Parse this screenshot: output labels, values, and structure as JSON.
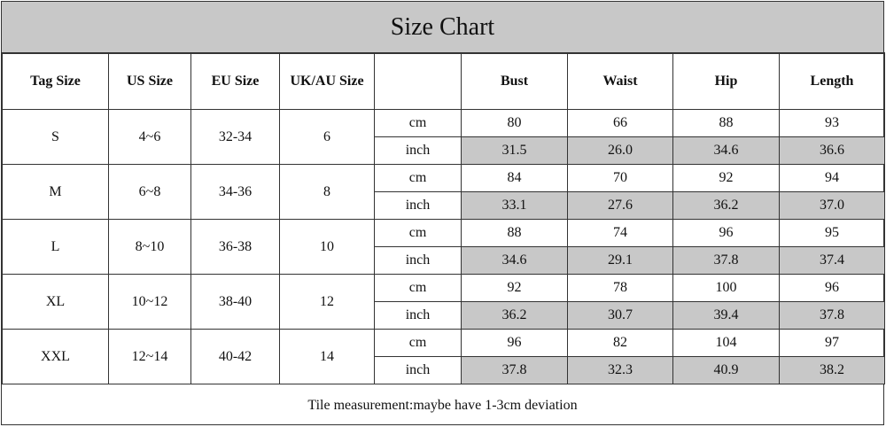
{
  "title": "Size Chart",
  "headers": {
    "tag": "Tag Size",
    "us": "US Size",
    "eu": "EU Size",
    "uk": "UK/AU Size",
    "unit": "",
    "bust": "Bust",
    "waist": "Waist",
    "hip": "Hip",
    "length": "Length"
  },
  "rows": [
    {
      "tag": "S",
      "us": "4~6",
      "eu": "32-34",
      "uk": "6",
      "cm": {
        "unit": "cm",
        "bust": "80",
        "waist": "66",
        "hip": "88",
        "length": "93"
      },
      "inch": {
        "unit": "inch",
        "bust": "31.5",
        "waist": "26.0",
        "hip": "34.6",
        "length": "36.6"
      }
    },
    {
      "tag": "M",
      "us": "6~8",
      "eu": "34-36",
      "uk": "8",
      "cm": {
        "unit": "cm",
        "bust": "84",
        "waist": "70",
        "hip": "92",
        "length": "94"
      },
      "inch": {
        "unit": "inch",
        "bust": "33.1",
        "waist": "27.6",
        "hip": "36.2",
        "length": "37.0"
      }
    },
    {
      "tag": "L",
      "us": "8~10",
      "eu": "36-38",
      "uk": "10",
      "cm": {
        "unit": "cm",
        "bust": "88",
        "waist": "74",
        "hip": "96",
        "length": "95"
      },
      "inch": {
        "unit": "inch",
        "bust": "34.6",
        "waist": "29.1",
        "hip": "37.8",
        "length": "37.4"
      }
    },
    {
      "tag": "XL",
      "us": "10~12",
      "eu": "38-40",
      "uk": "12",
      "cm": {
        "unit": "cm",
        "bust": "92",
        "waist": "78",
        "hip": "100",
        "length": "96"
      },
      "inch": {
        "unit": "inch",
        "bust": "36.2",
        "waist": "30.7",
        "hip": "39.4",
        "length": "37.8"
      }
    },
    {
      "tag": "XXL",
      "us": "12~14",
      "eu": "40-42",
      "uk": "14",
      "cm": {
        "unit": "cm",
        "bust": "96",
        "waist": "82",
        "hip": "104",
        "length": "97"
      },
      "inch": {
        "unit": "inch",
        "bust": "37.8",
        "waist": "32.3",
        "hip": "40.9",
        "length": "38.2"
      }
    }
  ],
  "footer": "Tile measurement:maybe have 1-3cm deviation",
  "colors": {
    "header_bg": "#c8c8c8",
    "shade": "#c8c8c8",
    "border": "#333333"
  }
}
